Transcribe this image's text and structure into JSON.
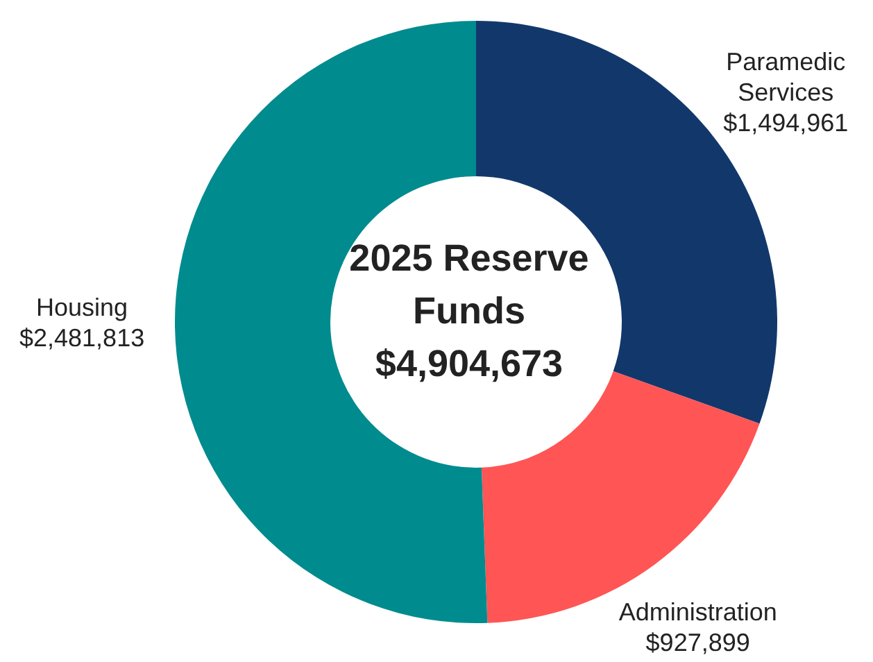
{
  "chart_data": {
    "type": "donut",
    "title": "2025 Reserve Funds",
    "subtitle": "$4,904,673",
    "categories": [
      "Paramedic Services",
      "Administration",
      "Housing"
    ],
    "values": [
      1494961,
      927899,
      2481813
    ],
    "colors": [
      "#12386b",
      "#ff5555",
      "#008b8f"
    ],
    "value_labels": [
      "$1,494,961",
      "$927,899",
      "$2,481,813"
    ],
    "legend": false
  }
}
